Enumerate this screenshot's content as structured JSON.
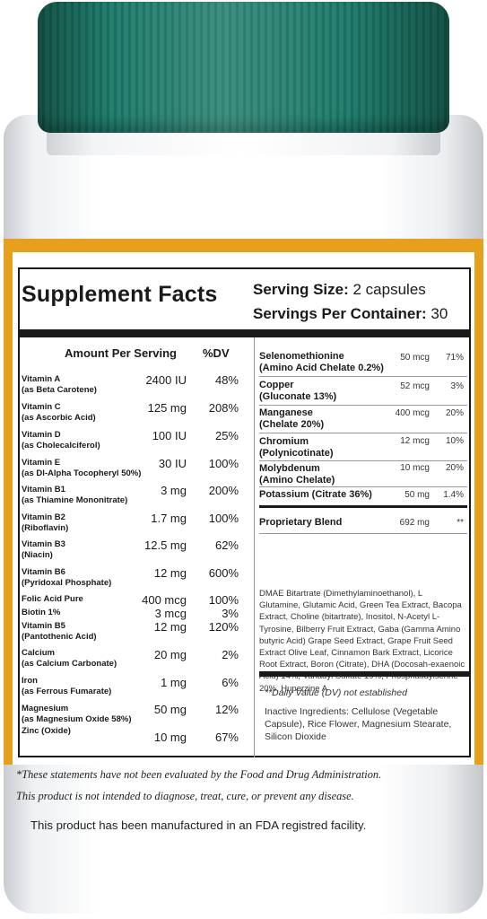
{
  "title": "Supplement Facts",
  "serving_size_label": "Serving Size:",
  "serving_size_value": "2 capsules",
  "servings_per_container_label": "Servings Per Container:",
  "servings_per_container_value": "30",
  "header": {
    "amount_per_serving": "Amount Per Serving",
    "dv": "%DV"
  },
  "left_items": [
    {
      "name": "Vitamin A",
      "sub": "(as Beta Carotene)",
      "amount": "2400 IU",
      "dv": "48%"
    },
    {
      "name": "Vitamin C",
      "sub": "(as Ascorbic Acid)",
      "amount": "125 mg",
      "dv": "208%"
    },
    {
      "name": "Vitamin D",
      "sub": "(as Cholecalciferol)",
      "amount": "100 IU",
      "dv": "25%"
    },
    {
      "name": "Vitamin E",
      "sub": "(as Dl-Alpha Tocopheryl 50%)",
      "amount": "30 IU",
      "dv": "100%"
    },
    {
      "name": "Vitamin B1",
      "sub": "(as Thiamine Mononitrate)",
      "amount": "3 mg",
      "dv": "200%"
    },
    {
      "name": "Vitamin B2",
      "sub": "(Riboflavin)",
      "amount": "1.7 mg",
      "dv": "100%"
    },
    {
      "name": "Vitamin B3",
      "sub": "(Niacin)",
      "amount": "12.5 mg",
      "dv": "62%"
    },
    {
      "name": "Vitamin B6",
      "sub": "(Pyridoxal Phosphate)",
      "amount": "12 mg",
      "dv": "600%"
    },
    {
      "name": "Folic Acid Pure",
      "sub": "",
      "amount": "400 mcg",
      "dv": "100%"
    },
    {
      "name": "Biotin 1%",
      "sub": "",
      "amount": "3 mcg",
      "dv": "3%"
    },
    {
      "name": "Vitamin B5",
      "sub": "(Pantothenic Acid)",
      "amount": "12 mg",
      "dv": "120%"
    },
    {
      "name": "Calcium",
      "sub": "(as Calcium Carbonate)",
      "amount": "20 mg",
      "dv": "2%"
    },
    {
      "name": "Iron",
      "sub": "(as Ferrous Fumarate)",
      "amount": "1 mg",
      "dv": "6%"
    },
    {
      "name": "Magnesium",
      "sub": "(as Magnesium Oxide 58%)",
      "amount": "50 mg",
      "dv": "12%"
    },
    {
      "name": "Zinc (Oxide)",
      "sub": "",
      "amount": "10 mg",
      "dv": "67%"
    }
  ],
  "right_items": [
    {
      "name": "Selenomethionine",
      "sub": "(Amino Acid Chelate 0.2%)",
      "amount": "50 mcg",
      "dv": "71%"
    },
    {
      "name": "Copper",
      "sub": "(Gluconate 13%)",
      "amount": "52 mcg",
      "dv": "3%"
    },
    {
      "name": "Manganese",
      "sub": "(Chelate 20%)",
      "amount": "400 mcg",
      "dv": "20%"
    },
    {
      "name": "Chromium",
      "sub": "(Polynicotinate)",
      "amount": "12 mcg",
      "dv": "10%"
    },
    {
      "name": "Molybdenum",
      "sub": "(Amino Chelate)",
      "amount": "10 mcg",
      "dv": "20%"
    },
    {
      "name": "Potassium (Citrate 36%)",
      "sub": "",
      "amount": "50 mg",
      "dv": "1.4%"
    }
  ],
  "proprietary_blend": {
    "name": "Proprietary Blend",
    "amount": "692 mg",
    "dv": "**"
  },
  "blend_ingredients": "DMAE Bitartrate (Dimethylaminoethanol), L Glutamine, Glutamic Acid, Green Tea Extract, Bacopa Extract, Choline (bitartrate), Inositol, N-Acetyl L-Tyrosine, Bilberry Fruit Extract, Gaba (Gamma Amino butyric Acid) Grape Seed Extract, Grape Fruit Seed Extract Olive Leaf, Cinnamon Bark Extract, Licorice Root Extract, Boron (Citrate), DHA (Docosah-exaenoic Acid) 14%, Vanadyl Sulfate 19%, Phosphatidylserine 20%, Huperzine A",
  "dv_note": "**Daily Value (DV) not established",
  "inactive_ingredients": "Inactive Ingredients: Cellulose (Vegetable Capsule), Rice Flower, Magnesium Stearate, Silicon Dioxide",
  "disclaimer_line1": "*These statements have not been evaluated by the Food and Drug Administration.",
  "disclaimer_line2": "This product is not intended to diagnose, treat, cure, or prevent any disease.",
  "manufactured": "This product has been manufactured in an FDA registred facility.",
  "colors": {
    "cap": "#23806f",
    "band": "#e79f1e",
    "ink": "#1a1a1a"
  }
}
